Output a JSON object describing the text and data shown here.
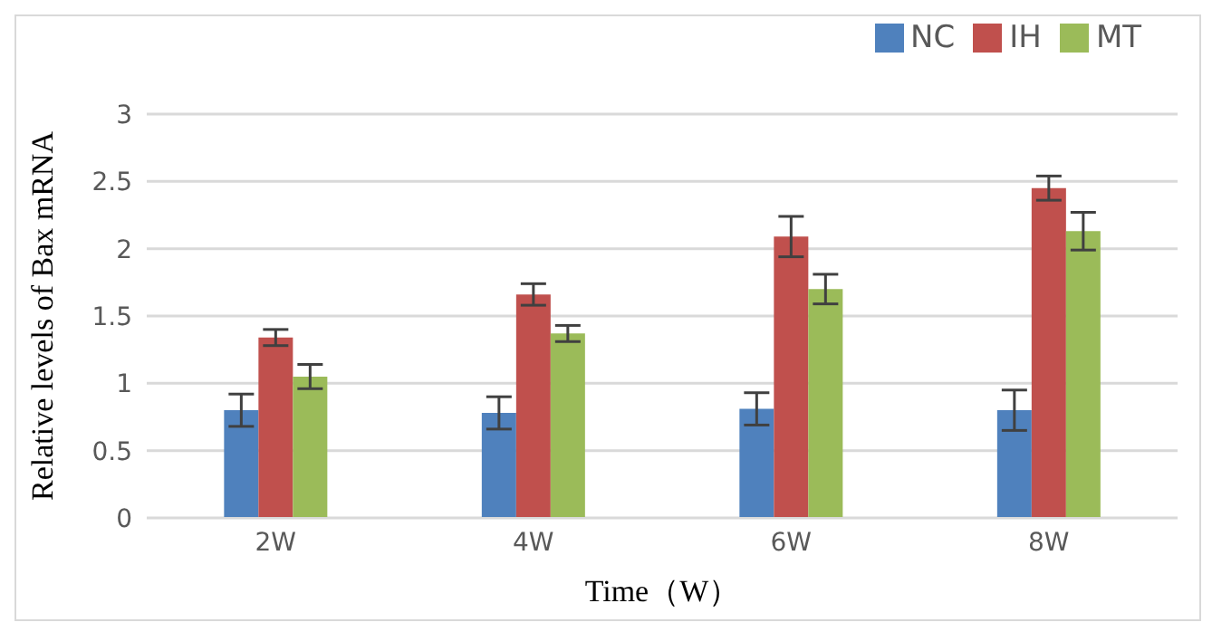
{
  "chart_data": {
    "type": "bar",
    "xlabel": "Time（W）",
    "ylabel": "Relative levels of Bax mRNA",
    "categories": [
      "2W",
      "4W",
      "6W",
      "8W"
    ],
    "series": [
      {
        "name": "NC",
        "color": "#4f81bd",
        "values": [
          0.8,
          0.78,
          0.81,
          0.8
        ],
        "errors": [
          0.12,
          0.12,
          0.12,
          0.15
        ]
      },
      {
        "name": "IH",
        "color": "#c0504d",
        "values": [
          1.34,
          1.66,
          2.09,
          2.45
        ],
        "errors": [
          0.06,
          0.08,
          0.15,
          0.09
        ]
      },
      {
        "name": "MT",
        "color": "#9bbb59",
        "values": [
          1.05,
          1.37,
          1.7,
          2.13
        ],
        "errors": [
          0.09,
          0.06,
          0.11,
          0.14
        ]
      }
    ],
    "ylim": [
      0,
      3
    ],
    "yticks": [
      0,
      0.5,
      1,
      1.5,
      2,
      2.5,
      3
    ],
    "grid": "y",
    "legend": "top right"
  }
}
